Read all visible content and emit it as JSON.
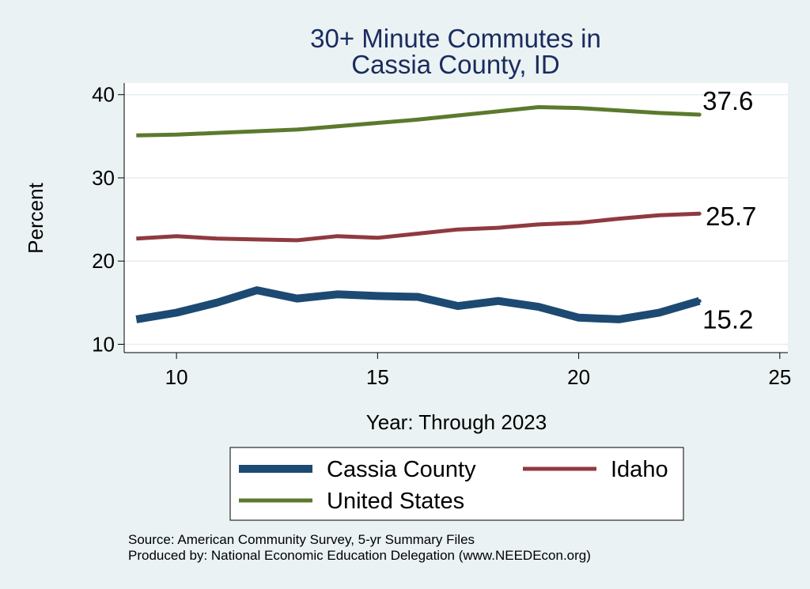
{
  "chart_data": {
    "type": "line",
    "title_lines": [
      "30+ Minute Commutes in",
      "Cassia County, ID"
    ],
    "xlabel": "Year: Through 2023",
    "ylabel": "Percent",
    "xlim": [
      8.7,
      25.2
    ],
    "ylim": [
      9,
      41.4
    ],
    "xticks": [
      10,
      15,
      20,
      25
    ],
    "yticks": [
      10,
      20,
      30,
      40
    ],
    "grid": true,
    "legend_position": "bottom",
    "x": [
      9,
      10,
      11,
      12,
      13,
      14,
      15,
      16,
      17,
      18,
      19,
      20,
      21,
      22,
      23
    ],
    "series": [
      {
        "name": "Cassia County",
        "color": "#1c4a72",
        "values": [
          13.0,
          13.8,
          15.0,
          16.5,
          15.5,
          16.0,
          15.8,
          15.7,
          14.6,
          15.2,
          14.5,
          13.2,
          13.0,
          13.8,
          15.2
        ],
        "end_label": "15.2"
      },
      {
        "name": "Idaho",
        "color": "#8f3a40",
        "values": [
          22.7,
          23.0,
          22.7,
          22.6,
          22.5,
          23.0,
          22.8,
          23.3,
          23.8,
          24.0,
          24.4,
          24.6,
          25.1,
          25.5,
          25.7
        ],
        "end_label": "25.7"
      },
      {
        "name": "United States",
        "color": "#5a7a2e",
        "values": [
          35.1,
          35.2,
          35.4,
          35.6,
          35.8,
          36.2,
          36.6,
          37.0,
          37.5,
          38.0,
          38.5,
          38.4,
          38.1,
          37.8,
          37.6
        ],
        "end_label": "37.6"
      }
    ]
  },
  "source_line_1": "Source: American Community Survey, 5-yr Summary Files",
  "source_line_2": "Produced by: National Economic Education Delegation (www.NEEDEcon.org)"
}
